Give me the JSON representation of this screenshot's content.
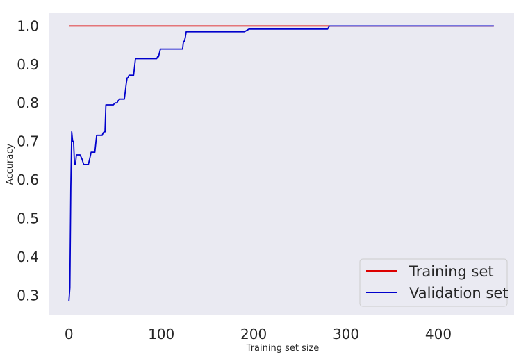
{
  "chart_data": {
    "type": "line",
    "title": "",
    "xlabel": "Training set size",
    "ylabel": "Accuracy",
    "xlim": [
      -22,
      482
    ],
    "ylim": [
      0.25,
      1.035
    ],
    "x_ticks": [
      0,
      100,
      200,
      300,
      400
    ],
    "x_tick_labels": [
      "0",
      "100",
      "200",
      "300",
      "400"
    ],
    "y_ticks": [
      0.3,
      0.4,
      0.5,
      0.6,
      0.7,
      0.8,
      0.9,
      1.0
    ],
    "y_tick_labels": [
      "0.3",
      "0.4",
      "0.5",
      "0.6",
      "0.7",
      "0.8",
      "0.9",
      "1.0"
    ],
    "grid": false,
    "legend_position": "bottom-right",
    "background_color": "#eaeaf2",
    "series": [
      {
        "name": "Training set",
        "color": "#dd0000",
        "x": [
          0,
          460
        ],
        "y": [
          1.0,
          1.0
        ]
      },
      {
        "name": "Validation set",
        "color": "#0000cc",
        "x": [
          0,
          1,
          2,
          3,
          4,
          5,
          6,
          7,
          8,
          9,
          12,
          14,
          16,
          18,
          21,
          24,
          26,
          28,
          30,
          36,
          37,
          38,
          39,
          40,
          48,
          50,
          52,
          53,
          55,
          57,
          60,
          62,
          63,
          64,
          65,
          66,
          67,
          70,
          72,
          73,
          75,
          78,
          95,
          96,
          97,
          98,
          99,
          100,
          110,
          123,
          124,
          125,
          126,
          127,
          128,
          150,
          190,
          195,
          200,
          280,
          282,
          300,
          400,
          460
        ],
        "y": [
          0.285,
          0.32,
          0.58,
          0.725,
          0.7,
          0.7,
          0.64,
          0.64,
          0.665,
          0.665,
          0.665,
          0.655,
          0.64,
          0.64,
          0.64,
          0.672,
          0.672,
          0.672,
          0.716,
          0.716,
          0.722,
          0.725,
          0.725,
          0.795,
          0.795,
          0.8,
          0.8,
          0.805,
          0.81,
          0.81,
          0.81,
          0.85,
          0.865,
          0.865,
          0.872,
          0.872,
          0.872,
          0.872,
          0.915,
          0.915,
          0.915,
          0.915,
          0.915,
          0.92,
          0.92,
          0.93,
          0.94,
          0.94,
          0.94,
          0.94,
          0.96,
          0.96,
          0.97,
          0.985,
          0.985,
          0.985,
          0.985,
          0.992,
          0.992,
          0.992,
          1.0,
          1.0,
          1.0,
          1.0
        ]
      }
    ]
  }
}
